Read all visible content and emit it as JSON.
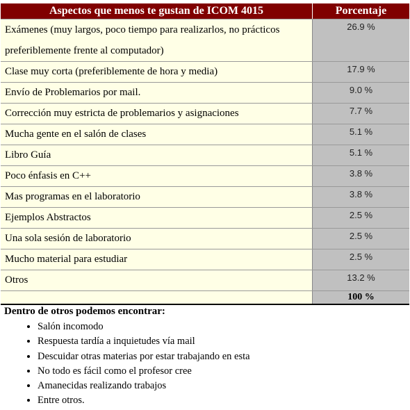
{
  "table": {
    "header": [
      "Aspectos que menos te gustan de ICOM 4015",
      "Porcentaje"
    ],
    "rows": [
      [
        "Exámenes (muy largos, poco tiempo para realizarlos, no prácticos preferiblemente frente al computador)",
        "26.9 %"
      ],
      [
        "Clase muy corta (preferiblemente de hora y media)",
        "17.9 %"
      ],
      [
        "Envío de Problemarios por mail.",
        "9.0 %"
      ],
      [
        "Corrección muy estricta de problemarios y asignaciones",
        "7.7 %"
      ],
      [
        "Mucha gente en el salón de clases",
        "5.1 %"
      ],
      [
        "Libro Guía",
        "5.1 %"
      ],
      [
        "Poco énfasis en C++",
        "3.8 %"
      ],
      [
        "Mas programas en el laboratorio",
        "3.8 %"
      ],
      [
        "Ejemplos Abstractos",
        "2.5 %"
      ],
      [
        "Una sola sesión de laboratorio",
        "2.5 %"
      ],
      [
        "Mucho material para estudiar",
        "2.5 %"
      ],
      [
        "Otros",
        "13.2 %"
      ]
    ],
    "total": "100 %"
  },
  "notes": {
    "title": "Dentro de otros podemos encontrar:",
    "items": [
      "Salón incomodo",
      "Respuesta tardía a inquietudes vía mail",
      "Descuidar otras materias por estar trabajando en esta",
      "No todo es fácil como el profesor cree",
      "Amanecidas realizando trabajos",
      "Entre otros."
    ]
  }
}
